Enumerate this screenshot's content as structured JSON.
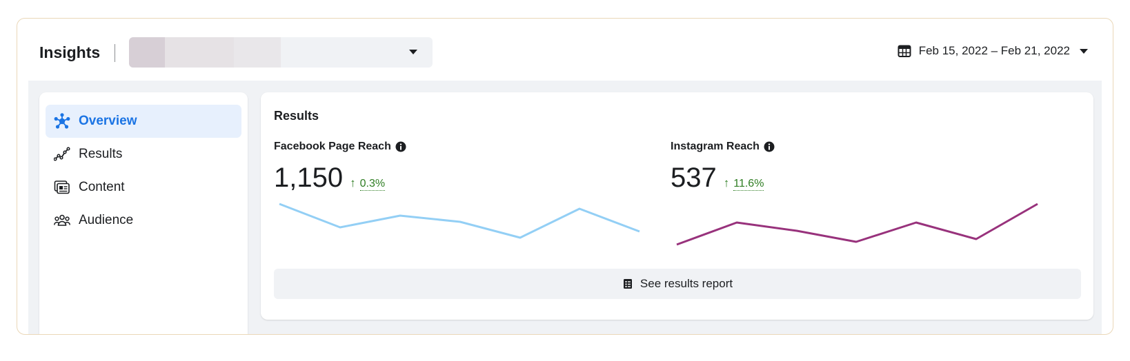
{
  "header": {
    "title": "Insights",
    "date_range": "Feb 15, 2022 – Feb 21, 2022"
  },
  "sidebar": {
    "items": [
      {
        "label": "Overview",
        "icon": "network-icon",
        "active": true
      },
      {
        "label": "Results",
        "icon": "trend-line-icon",
        "active": false
      },
      {
        "label": "Content",
        "icon": "content-cards-icon",
        "active": false
      },
      {
        "label": "Audience",
        "icon": "people-group-icon",
        "active": false
      }
    ]
  },
  "results": {
    "title": "Results",
    "facebook": {
      "label": "Facebook Page Reach",
      "value": "1,150",
      "change": "0.3%",
      "line_color": "#93cff5"
    },
    "instagram": {
      "label": "Instagram Reach",
      "value": "537",
      "change": "11.6%",
      "line_color": "#98327c"
    },
    "report_button": "See results report"
  },
  "colors": {
    "accent": "#1b74e4",
    "positive": "#2e7d22",
    "active_nav_bg": "#e7f0fd"
  }
}
